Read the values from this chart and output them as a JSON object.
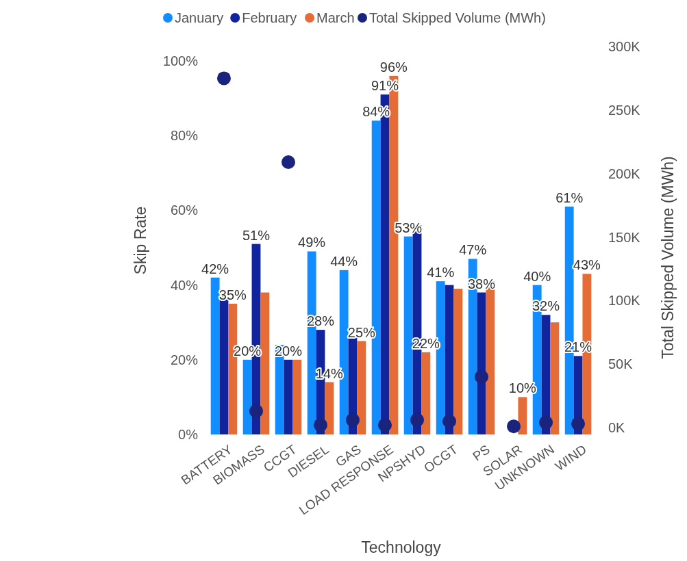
{
  "chart_data": {
    "type": "bar",
    "xlabel": "Technology",
    "ylabel": "Skip Rate",
    "y2label": "Total Skipped Volume (MWh)",
    "legend": "top",
    "categories": [
      "BATTERY",
      "BIOMASS",
      "CCGT",
      "DIESEL",
      "GAS",
      "LOAD RESPONSE",
      "NPSHYD",
      "OCGT",
      "PS",
      "SOLAR",
      "UNKNOWN",
      "WIND"
    ],
    "ylim": [
      0,
      100
    ],
    "yticks": [
      {
        "value": 0,
        "label": "0%"
      },
      {
        "value": 20,
        "label": "20%"
      },
      {
        "value": 40,
        "label": "40%"
      },
      {
        "value": 60,
        "label": "60%"
      },
      {
        "value": 80,
        "label": "80%"
      },
      {
        "value": 100,
        "label": "100%"
      }
    ],
    "y2lim": [
      0,
      300000
    ],
    "y2ticks": [
      {
        "value": 0,
        "label": "0K"
      },
      {
        "value": 50000,
        "label": "50K"
      },
      {
        "value": 100000,
        "label": "100K"
      },
      {
        "value": 150000,
        "label": "150K"
      },
      {
        "value": 200000,
        "label": "200K"
      },
      {
        "value": 250000,
        "label": "250K"
      },
      {
        "value": 300000,
        "label": "300K"
      }
    ],
    "series": [
      {
        "name": "January",
        "type": "bar",
        "color": "#118dff",
        "values": [
          42,
          20,
          24,
          49,
          44,
          84,
          53,
          41,
          47,
          null,
          40,
          61
        ],
        "value_labels": [
          "42%",
          "20%",
          null,
          "49%",
          "44%",
          "84%",
          "53%",
          "41%",
          "47%",
          null,
          "40%",
          "61%"
        ]
      },
      {
        "name": "February",
        "type": "bar",
        "color": "#12239e",
        "values": [
          37,
          51,
          20,
          28,
          26,
          91,
          56,
          40,
          38,
          null,
          32,
          21
        ],
        "value_labels": [
          null,
          "51%",
          "20%",
          "28%",
          null,
          "91%",
          null,
          null,
          "38%",
          null,
          "32%",
          "21%"
        ]
      },
      {
        "name": "March",
        "type": "bar",
        "color": "#e66c37",
        "values": [
          35,
          38,
          20,
          14,
          25,
          96,
          22,
          39,
          41,
          10,
          30,
          43
        ],
        "value_labels": [
          "35%",
          null,
          null,
          "14%",
          "25%",
          "96%",
          "22%",
          null,
          null,
          "10%",
          null,
          "43%"
        ]
      },
      {
        "name": "Total Skipped Volume (MWh)",
        "type": "scatter",
        "axis": "y2",
        "marker": "circle",
        "color": "#1a237e",
        "values": [
          275000,
          13000,
          209000,
          2000,
          6000,
          2000,
          6000,
          5000,
          40000,
          1000,
          4000,
          3000
        ]
      }
    ]
  }
}
